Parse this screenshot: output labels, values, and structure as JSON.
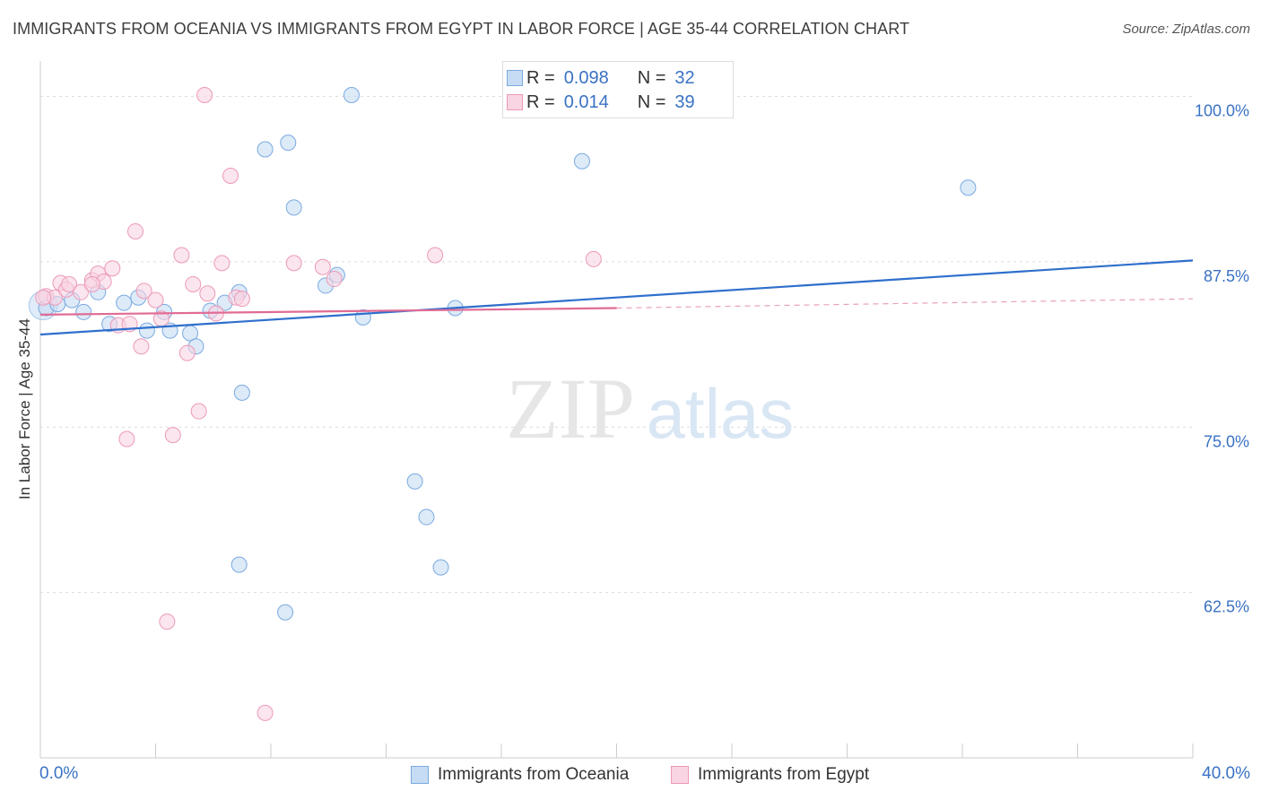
{
  "chart_data": {
    "type": "scatter",
    "title": "IMMIGRANTS FROM OCEANIA VS IMMIGRANTS FROM EGYPT IN LABOR FORCE | AGE 35-44 CORRELATION CHART",
    "source": "Source: ZipAtlas.com",
    "xlabel": "",
    "ylabel": "In Labor Force | Age 35-44",
    "xlim": [
      0,
      40
    ],
    "ylim": [
      50,
      102
    ],
    "x_tick_labels": [
      "0.0%",
      "40.0%"
    ],
    "y_ticks": [
      {
        "value": 100,
        "label": "100.0%"
      },
      {
        "value": 87.5,
        "label": "87.5%"
      },
      {
        "value": 75,
        "label": "75.0%"
      },
      {
        "value": 62.5,
        "label": "62.5%"
      }
    ],
    "watermark": {
      "zip": "ZIP",
      "atlas": "atlas"
    },
    "legend": {
      "r_label": "R =",
      "n_label": "N =",
      "entries": [
        {
          "r": "0.098",
          "n": "32"
        },
        {
          "r": "0.014",
          "n": "39"
        }
      ]
    },
    "series": [
      {
        "name": "Immigrants from Oceania",
        "color": "#7aaae0",
        "fill": "#c6dcf4",
        "trend": {
          "x": [
            0,
            40
          ],
          "y": [
            82.0,
            87.6
          ]
        },
        "points": [
          [
            0.2,
            84.0
          ],
          [
            0.6,
            84.3
          ],
          [
            1.1,
            84.6
          ],
          [
            1.5,
            83.7
          ],
          [
            2.0,
            85.2
          ],
          [
            2.4,
            82.8
          ],
          [
            2.9,
            84.4
          ],
          [
            3.4,
            84.8
          ],
          [
            3.7,
            82.3
          ],
          [
            4.3,
            83.7
          ],
          [
            4.5,
            82.3
          ],
          [
            5.2,
            82.1
          ],
          [
            5.4,
            81.1
          ],
          [
            5.9,
            83.8
          ],
          [
            6.4,
            84.4
          ],
          [
            6.9,
            85.2
          ],
          [
            7.0,
            77.6
          ],
          [
            7.8,
            96.0
          ],
          [
            8.6,
            96.5
          ],
          [
            8.8,
            91.6
          ],
          [
            9.9,
            85.7
          ],
          [
            10.3,
            86.5
          ],
          [
            10.8,
            100.1
          ],
          [
            11.2,
            83.3
          ],
          [
            13.0,
            70.9
          ],
          [
            13.4,
            68.2
          ],
          [
            13.9,
            64.4
          ],
          [
            14.4,
            84.0
          ],
          [
            18.8,
            95.1
          ],
          [
            6.9,
            64.6
          ],
          [
            8.5,
            61.0
          ],
          [
            32.2,
            93.1
          ]
        ]
      },
      {
        "name": "Immigrants from Egypt",
        "color": "#ec9ab8",
        "fill": "#f9d4e2",
        "trend": {
          "x": [
            0,
            20
          ],
          "y": [
            83.5,
            84.0
          ]
        },
        "trend_ext": {
          "x": [
            20,
            40
          ],
          "y": [
            84.0,
            84.7
          ]
        },
        "points": [
          [
            0.2,
            84.9
          ],
          [
            0.5,
            84.8
          ],
          [
            0.7,
            85.9
          ],
          [
            0.9,
            85.4
          ],
          [
            1.0,
            85.8
          ],
          [
            1.4,
            85.2
          ],
          [
            1.8,
            86.1
          ],
          [
            2.0,
            86.6
          ],
          [
            2.2,
            86.0
          ],
          [
            2.5,
            87.0
          ],
          [
            2.7,
            82.7
          ],
          [
            3.1,
            82.8
          ],
          [
            3.3,
            89.8
          ],
          [
            3.5,
            81.1
          ],
          [
            3.6,
            85.3
          ],
          [
            4.0,
            84.6
          ],
          [
            4.2,
            83.2
          ],
          [
            4.6,
            74.4
          ],
          [
            4.9,
            88.0
          ],
          [
            5.1,
            80.6
          ],
          [
            5.3,
            85.8
          ],
          [
            5.5,
            76.2
          ],
          [
            5.7,
            100.1
          ],
          [
            5.8,
            85.1
          ],
          [
            6.1,
            83.6
          ],
          [
            6.3,
            87.4
          ],
          [
            6.6,
            94.0
          ],
          [
            6.8,
            84.8
          ],
          [
            7.0,
            84.7
          ],
          [
            8.8,
            87.4
          ],
          [
            9.8,
            87.1
          ],
          [
            10.2,
            86.2
          ],
          [
            13.7,
            88.0
          ],
          [
            19.2,
            87.7
          ],
          [
            3.0,
            74.1
          ],
          [
            4.4,
            60.3
          ],
          [
            7.8,
            53.4
          ],
          [
            0.1,
            84.8
          ],
          [
            1.8,
            85.8
          ]
        ]
      }
    ]
  }
}
